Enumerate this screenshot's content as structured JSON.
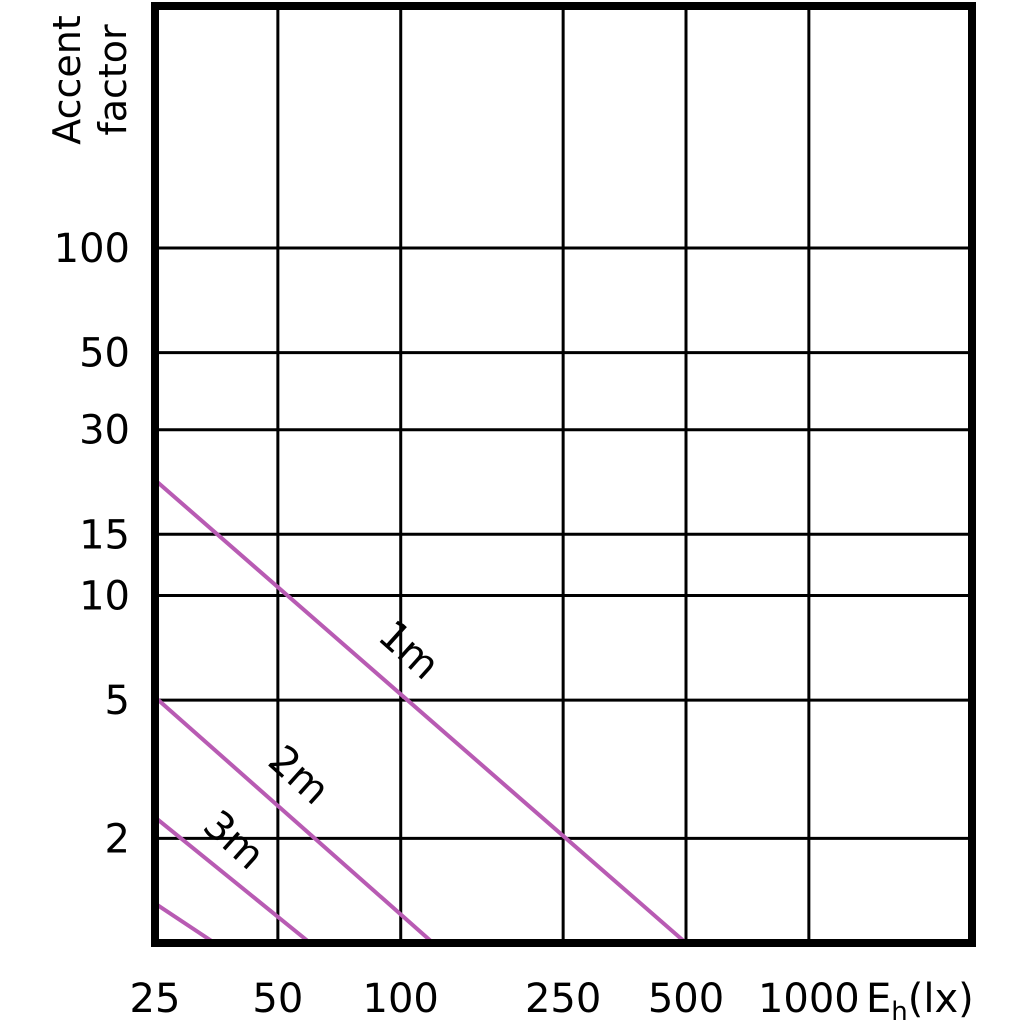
{
  "chart_data": {
    "type": "line",
    "ylabel_line1": "Accent",
    "ylabel_line2": "factor",
    "xlabel_main": "E",
    "xlabel_sub": "h",
    "xlabel_unit": "(lx)",
    "x_ticks": [
      25,
      50,
      100,
      250,
      500,
      1000
    ],
    "x_tick_labels": [
      "25",
      "50",
      "100",
      "250",
      "500",
      "1000"
    ],
    "y_ticks": [
      2,
      5,
      10,
      15,
      30,
      50,
      100
    ],
    "y_tick_labels": [
      "2",
      "5",
      "10",
      "15",
      "30",
      "50",
      "100"
    ],
    "grid": true,
    "line_color": "#b85bb3",
    "series": [
      {
        "name": "1m",
        "x": [
          25,
          500
        ],
        "y": [
          21.5,
          1
        ]
      },
      {
        "name": "2m",
        "x": [
          25,
          120
        ],
        "y": [
          5.1,
          1
        ]
      },
      {
        "name": "3m",
        "x": [
          25,
          60
        ],
        "y": [
          2.3,
          1
        ]
      },
      {
        "name": "",
        "x": [
          25,
          35
        ],
        "y": [
          1.3,
          1
        ]
      }
    ]
  }
}
